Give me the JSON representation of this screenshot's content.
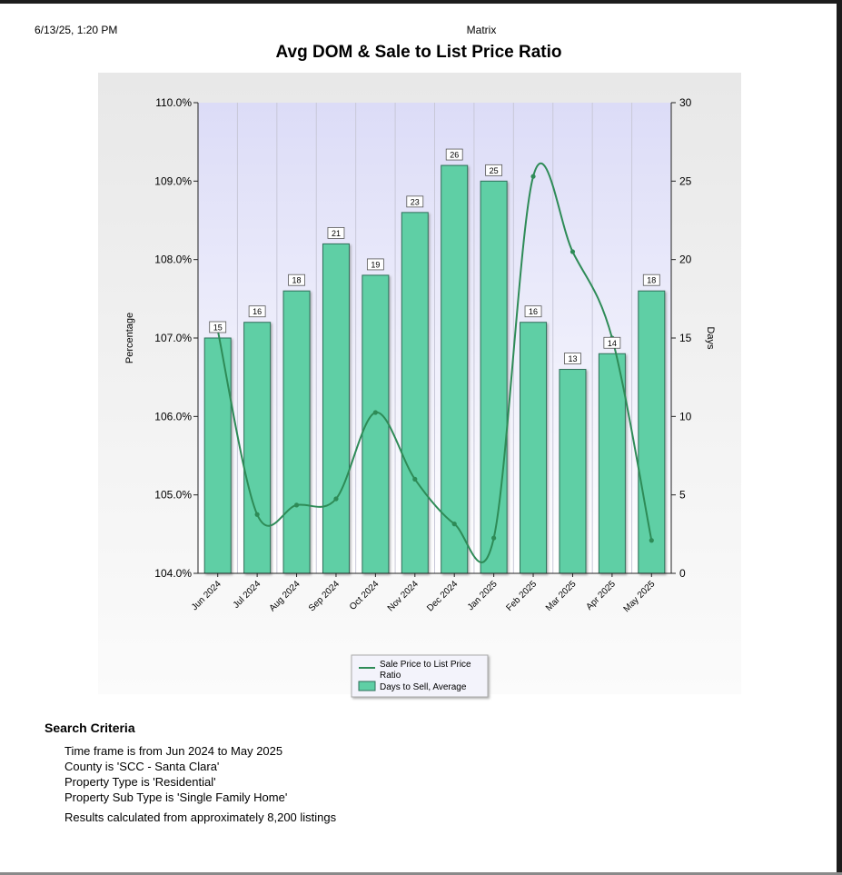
{
  "header": {
    "timestamp": "6/13/25, 1:20 PM",
    "app_name": "Matrix"
  },
  "chart_data": {
    "type": "bar",
    "title": "Avg DOM & Sale to List Price Ratio",
    "categories": [
      "Jun 2024",
      "Jul 2024",
      "Aug 2024",
      "Sep 2024",
      "Oct 2024",
      "Nov 2024",
      "Dec 2024",
      "Jan 2025",
      "Feb 2025",
      "Mar 2025",
      "Apr 2025",
      "May 2025"
    ],
    "series": [
      {
        "name": "Days to Sell, Average",
        "kind": "bar",
        "axis": "right",
        "values": [
          15,
          16,
          18,
          21,
          19,
          23,
          26,
          25,
          16,
          13,
          14,
          18
        ],
        "data_labels": [
          "15",
          "16",
          "18",
          "21",
          "19",
          "23",
          "26",
          "25",
          "16",
          "13",
          "14",
          "18"
        ],
        "color": "#5fcfa5"
      },
      {
        "name": "Sale Price to List Price Ratio",
        "kind": "line",
        "axis": "left",
        "values": [
          107.1,
          104.75,
          104.87,
          104.95,
          106.05,
          105.2,
          104.63,
          104.45,
          109.06,
          108.1,
          107.0,
          104.42
        ],
        "color": "#2e8b57"
      }
    ],
    "y_left": {
      "label": "Percentage",
      "range": [
        104,
        110
      ],
      "ticks": [
        "104.0%",
        "105.0%",
        "106.0%",
        "107.0%",
        "108.0%",
        "109.0%",
        "110.0%"
      ]
    },
    "y_right": {
      "label": "Days",
      "range": [
        0,
        30
      ],
      "ticks": [
        "0",
        "5",
        "10",
        "15",
        "20",
        "25",
        "30"
      ]
    },
    "legend": {
      "placement": "bottom-center",
      "entries": [
        "Sale Price to List Price Ratio",
        "Days to Sell, Average"
      ]
    },
    "grid": "vertical",
    "colors": {
      "plot_bg_top": "#dcdcf7",
      "plot_bg_bottom": "#ffffff",
      "bar_fill": "#5fcfa5",
      "bar_stroke": "#2f6f5a",
      "line": "#2e8b57"
    }
  },
  "criteria": {
    "heading": "Search Criteria",
    "items": [
      "Time frame is from Jun 2024 to May 2025",
      "County is 'SCC - Santa Clara'",
      "Property Type is 'Residential'",
      "Property Sub Type is 'Single Family Home'"
    ],
    "summary": "Results calculated from approximately 8,200 listings"
  }
}
